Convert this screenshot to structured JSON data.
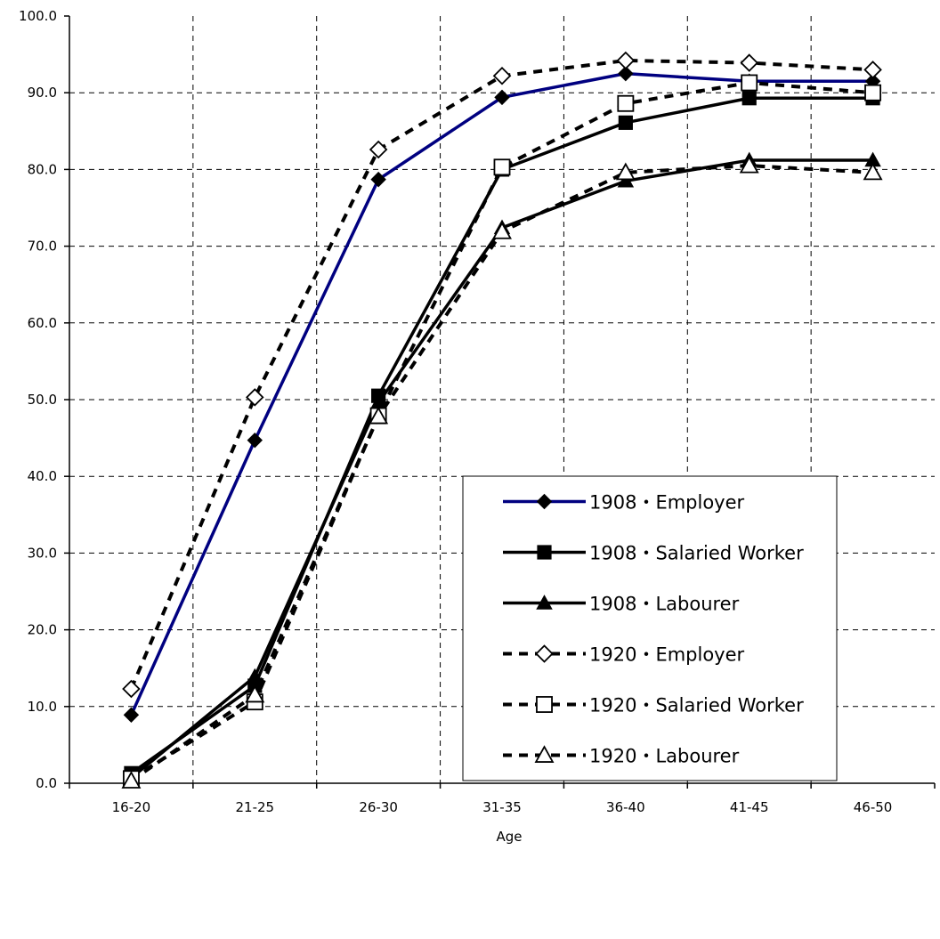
{
  "chart_data": {
    "type": "line",
    "title": "",
    "xlabel": "Age",
    "ylabel": "",
    "categories": [
      "16-20",
      "21-25",
      "26-30",
      "31-35",
      "36-40",
      "41-45",
      "46-50"
    ],
    "ylim": [
      0,
      100
    ],
    "yticks": [
      "0.0",
      "10.0",
      "20.0",
      "30.0",
      "40.0",
      "50.0",
      "60.0",
      "70.0",
      "80.0",
      "90.0",
      "100.0"
    ],
    "grid": true,
    "legend_position": "right-center",
    "series": [
      {
        "name": "1908・Employer",
        "values": [
          8.9,
          44.7,
          78.7,
          89.4,
          92.5,
          91.5,
          91.5
        ],
        "color": "#000080",
        "dashed": false,
        "marker": "diamond",
        "filled": true
      },
      {
        "name": "1908・Salaried Worker",
        "values": [
          1.3,
          12.7,
          50.5,
          80.0,
          86.1,
          89.3,
          89.3
        ],
        "color": "#000000",
        "dashed": false,
        "marker": "square",
        "filled": true
      },
      {
        "name": "1908・Labourer",
        "values": [
          0.7,
          13.9,
          49.6,
          72.4,
          78.5,
          81.2,
          81.2
        ],
        "color": "#000000",
        "dashed": false,
        "marker": "triangle",
        "filled": true
      },
      {
        "name": "1920・Employer",
        "values": [
          12.3,
          50.3,
          82.6,
          92.2,
          94.2,
          93.9,
          93.0
        ],
        "color": "#000000",
        "dashed": true,
        "marker": "diamond",
        "filled": false
      },
      {
        "name": "1920・Salaried Worker",
        "values": [
          0.6,
          10.6,
          47.9,
          80.3,
          88.6,
          91.3,
          90.0
        ],
        "color": "#000000",
        "dashed": true,
        "marker": "square",
        "filled": false
      },
      {
        "name": "1920・Labourer",
        "values": [
          0.3,
          11.5,
          47.8,
          71.9,
          79.6,
          80.5,
          79.6
        ],
        "color": "#000000",
        "dashed": true,
        "marker": "triangle",
        "filled": false
      }
    ]
  }
}
